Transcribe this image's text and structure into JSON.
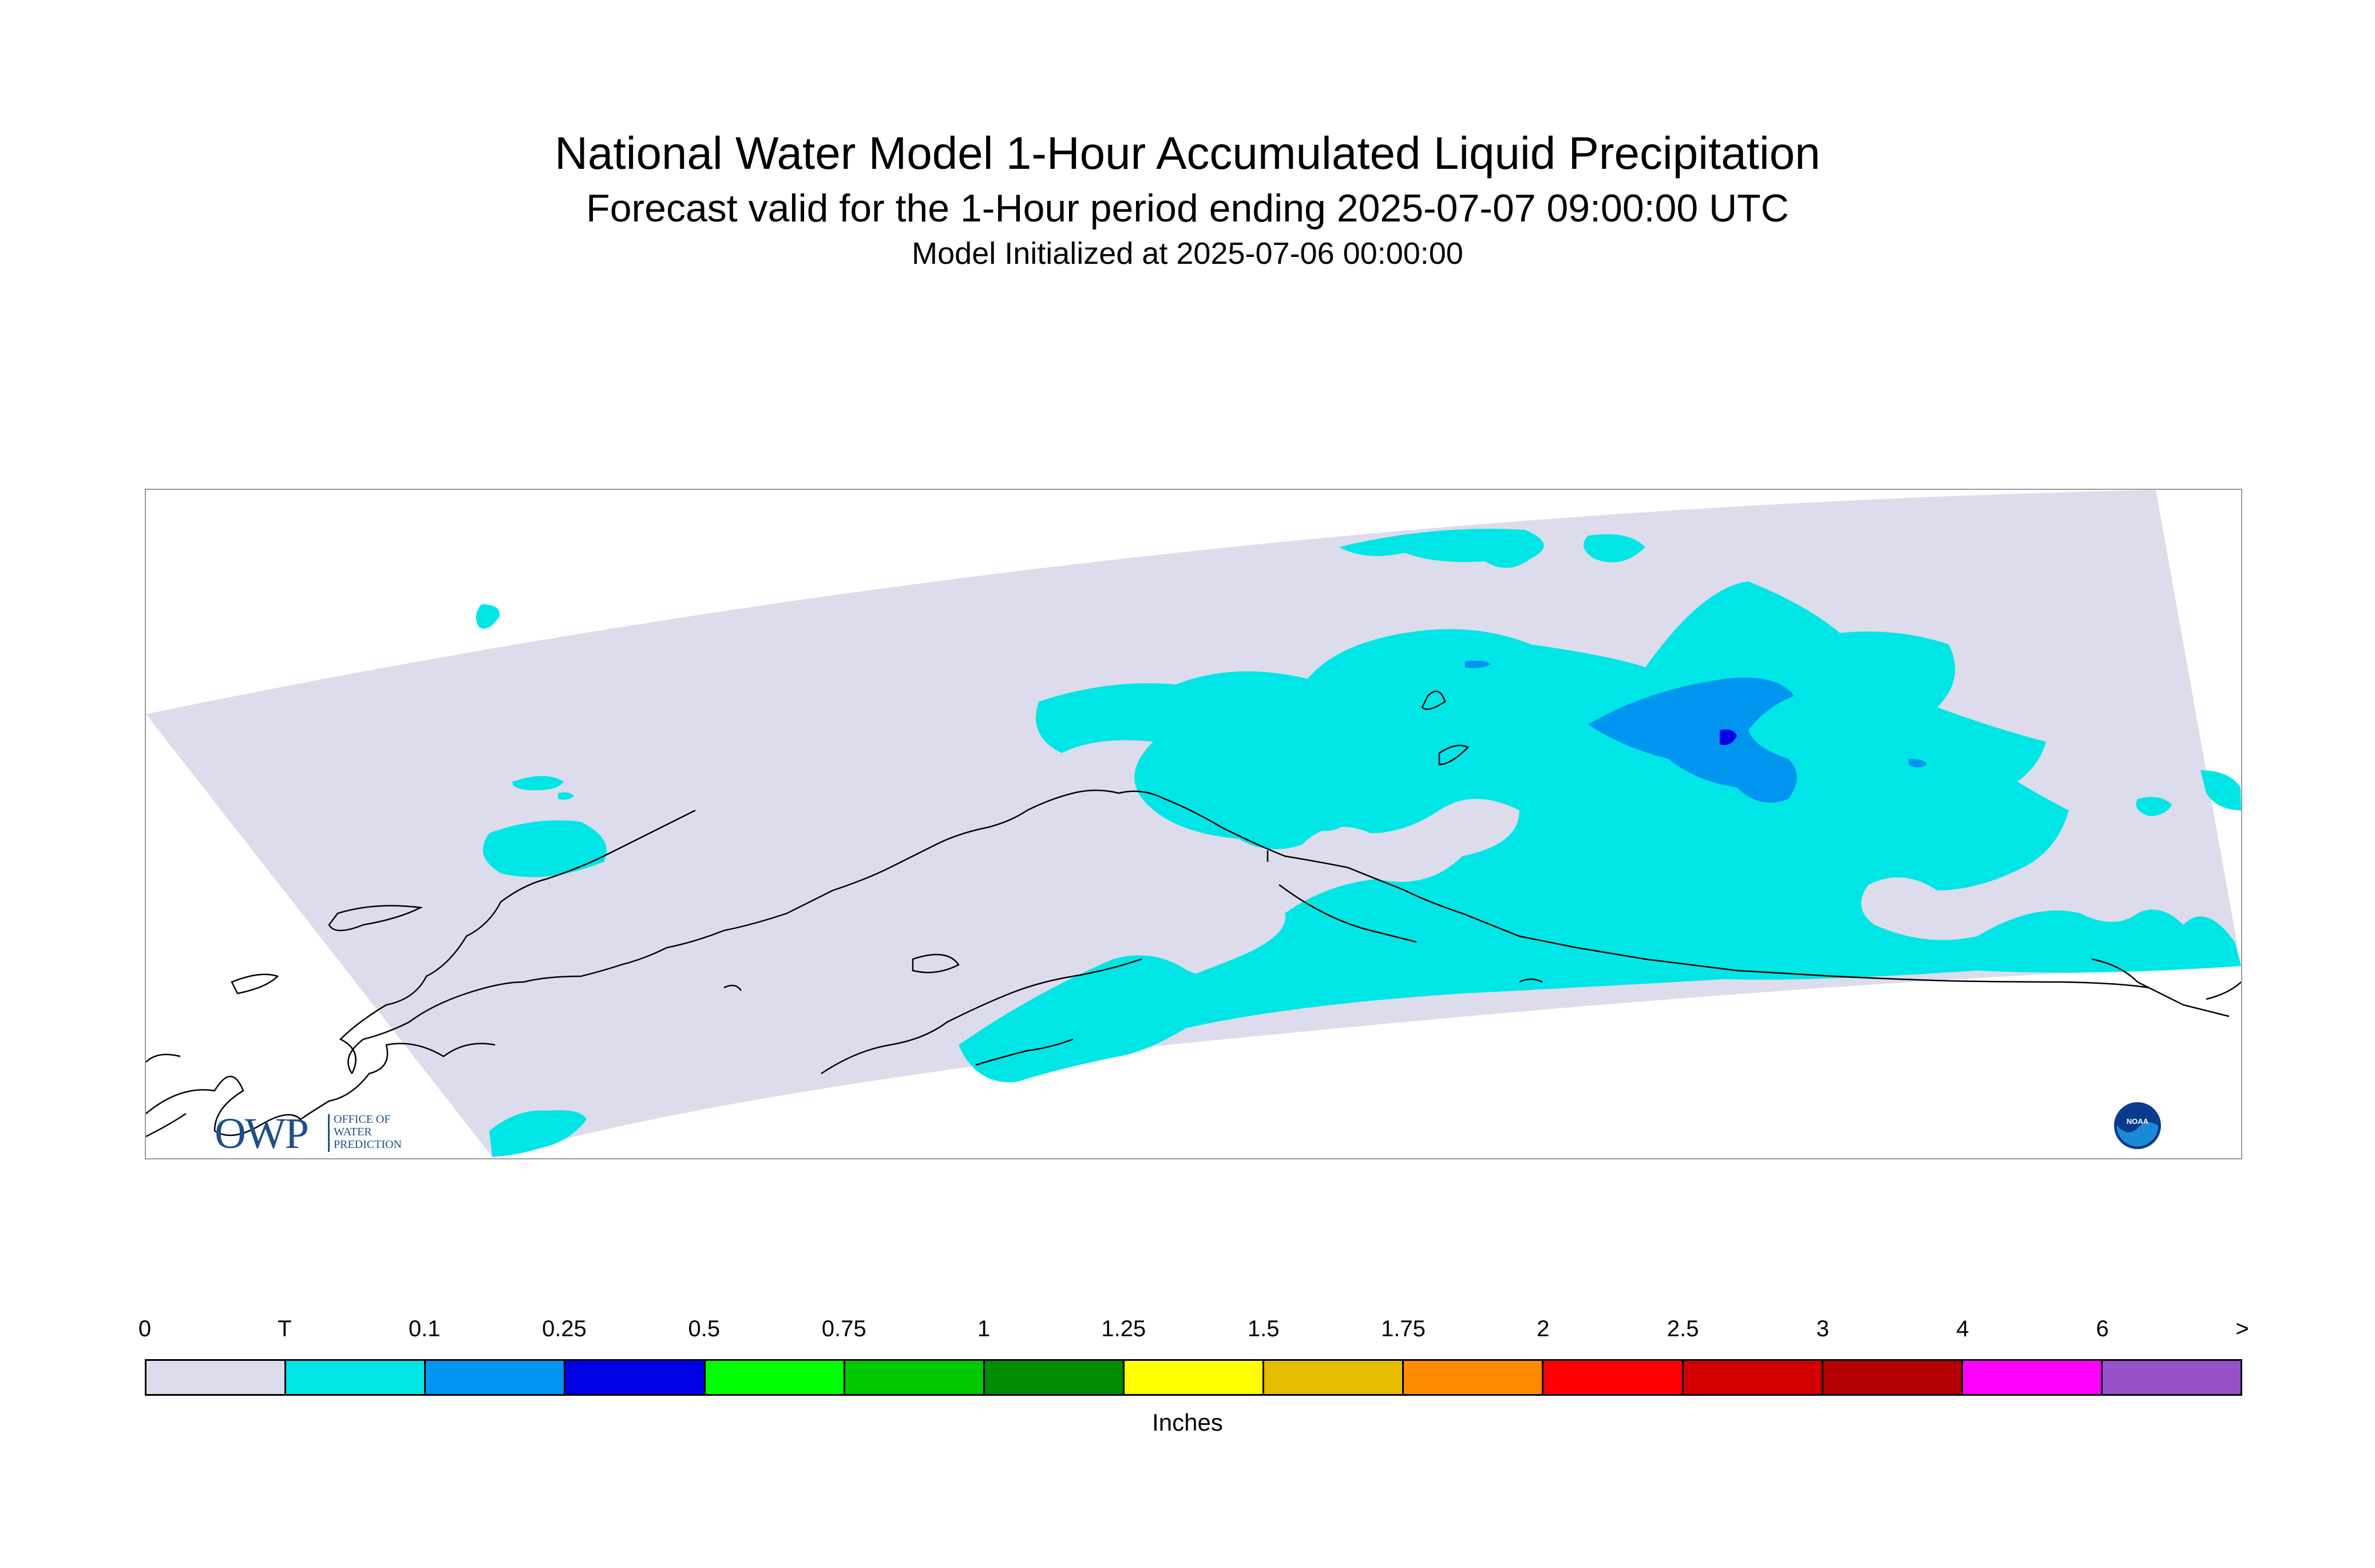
{
  "title": "National Water Model 1-Hour Accumulated Liquid Precipitation",
  "subtitle": "Forecast valid for the 1-Hour period ending 2025-07-07 09:00:00 UTC",
  "init_line": "Model Initialized at 2025-07-06 00:00:00",
  "map": {
    "region": "Alaska",
    "background_color": "#dcdcec",
    "coastline_color": "#000000",
    "precip_colors": {
      "trace": "#00e6e6",
      "0.1": "#0096f0",
      "0.25": "#0000e6"
    }
  },
  "logos": {
    "owp_big": "OWP",
    "owp_small": [
      "OFFICE OF",
      "WATER",
      "PREDICTION"
    ],
    "noaa": "NOAA"
  },
  "legend": {
    "units": "Inches",
    "tick_labels": [
      "0",
      "T",
      "0.1",
      "0.25",
      "0.5",
      "0.75",
      "1",
      "1.25",
      "1.5",
      "1.75",
      "2",
      "2.5",
      "3",
      "4",
      "6",
      ">"
    ],
    "colors": [
      "#dcdcec",
      "#00e6e6",
      "#0096f0",
      "#0000e6",
      "#00ff00",
      "#00c800",
      "#008c00",
      "#ffff00",
      "#e6be00",
      "#ff8c00",
      "#ff0000",
      "#d20000",
      "#b40000",
      "#ff00ff",
      "#9650c8"
    ]
  }
}
